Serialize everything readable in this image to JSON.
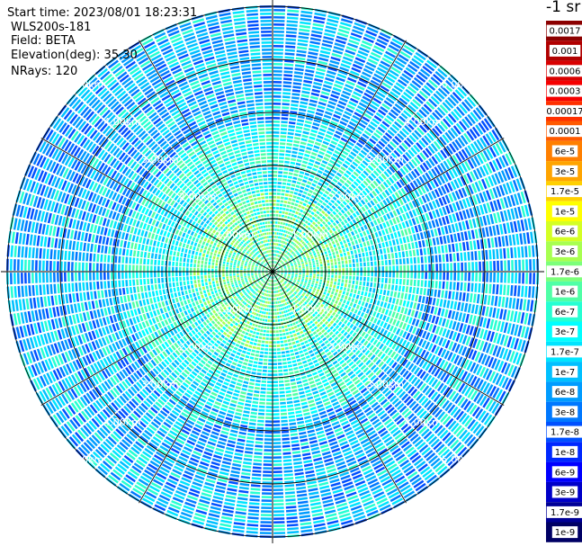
{
  "info": {
    "start_time": "Start time: 2023/08/01 18:23:31",
    "radar": "WLS200s-181",
    "field": "Field: BETA",
    "elevation": "Elevation(deg): 35.30",
    "nrays": "NRays: 120"
  },
  "colorbar": {
    "units_label": "-1 sr",
    "entries": [
      {
        "label": "0.0017",
        "color": "#8b0000"
      },
      {
        "label": "0.001",
        "color": "#b00000"
      },
      {
        "label": "0.0006",
        "color": "#d80000"
      },
      {
        "label": "0.0003",
        "color": "#f50000"
      },
      {
        "label": "0.00017",
        "color": "#ff3000"
      },
      {
        "label": "0.0001",
        "color": "#ff5a00"
      },
      {
        "label": "6e-5",
        "color": "#ff7f00"
      },
      {
        "label": "3e-5",
        "color": "#ffa400"
      },
      {
        "label": "1.7e-5",
        "color": "#ffd000"
      },
      {
        "label": "1e-5",
        "color": "#ffff00"
      },
      {
        "label": "6e-6",
        "color": "#d4ff24"
      },
      {
        "label": "3e-6",
        "color": "#a8ff50"
      },
      {
        "label": "1.7e-6",
        "color": "#7cff7a"
      },
      {
        "label": "1e-6",
        "color": "#50ffa6"
      },
      {
        "label": "6e-7",
        "color": "#26ffd2"
      },
      {
        "label": "3e-7",
        "color": "#00ffff"
      },
      {
        "label": "1.7e-7",
        "color": "#00e4ff"
      },
      {
        "label": "1e-7",
        "color": "#00c0ff"
      },
      {
        "label": "6e-8",
        "color": "#009cff"
      },
      {
        "label": "3e-8",
        "color": "#0078ff"
      },
      {
        "label": "1.7e-8",
        "color": "#0050ff"
      },
      {
        "label": "1e-8",
        "color": "#0028ff"
      },
      {
        "label": "6e-9",
        "color": "#0000ff"
      },
      {
        "label": "3e-9",
        "color": "#0000c8"
      },
      {
        "label": "1.7e-9",
        "color": "#000096"
      },
      {
        "label": "1e-9",
        "color": "#000064"
      }
    ]
  },
  "chart_data": {
    "type": "heatmap",
    "projection": "polar PPI",
    "field": "BETA",
    "rays": 120,
    "range_rings_km": [
      1,
      2,
      3,
      4,
      5
    ],
    "ring_labels": [
      "1.00km",
      "2.00km",
      "3.00km",
      "4.00km",
      "5.00km"
    ],
    "spokes_deg": [
      0,
      30,
      60,
      90,
      120,
      150,
      180,
      210,
      240,
      270,
      300,
      330
    ],
    "typical_values": {
      "near_center": "1.7e-6 to 6e-7",
      "mid_range": "3e-7 to 1e-7",
      "far_range": "1e-7 to 1.7e-8"
    },
    "colors": {
      "near": [
        "#7cff7a",
        "#50ffa6",
        "#26ffd2",
        "#00ffff",
        "#a8ff50"
      ],
      "mid": [
        "#26ffd2",
        "#00ffff",
        "#00e4ff",
        "#00c0ff",
        "#50ffa6"
      ],
      "far": [
        "#00e4ff",
        "#00c0ff",
        "#009cff",
        "#0078ff",
        "#0050ff",
        "#26ffd2"
      ]
    }
  }
}
